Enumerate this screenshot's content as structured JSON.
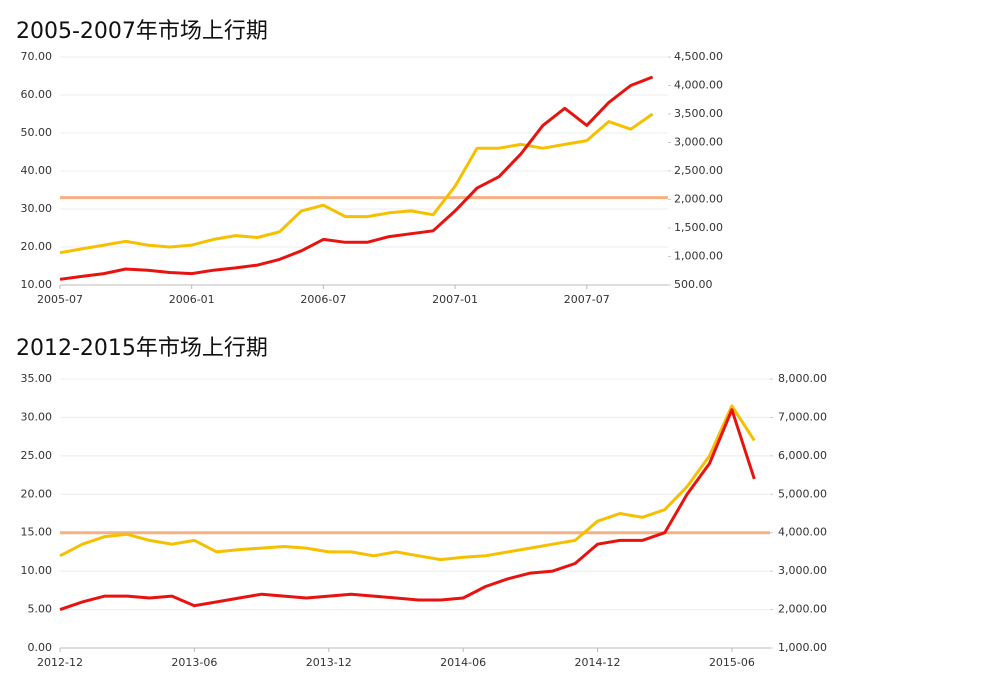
{
  "chart_data": [
    {
      "type": "line",
      "title": "2005-2007年市场上行期",
      "categories": [
        "2005-07",
        null,
        null,
        null,
        null,
        null,
        "2006-01",
        null,
        null,
        null,
        null,
        null,
        "2006-07",
        null,
        null,
        null,
        null,
        null,
        "2007-01",
        null,
        null,
        null,
        null,
        null,
        "2007-07",
        null,
        null,
        null
      ],
      "series": [
        {
          "color": "#f5c000",
          "axis": "y",
          "values": [
            18.5,
            19.5,
            20.5,
            21.5,
            20.5,
            20,
            20.5,
            22,
            23,
            22.5,
            24,
            29.5,
            31,
            28,
            28,
            29,
            29.5,
            28.5,
            36,
            46,
            46,
            47,
            46,
            47,
            48,
            53,
            51,
            55
          ]
        },
        {
          "color": "#e8130f",
          "axis": "y2",
          "values": [
            600,
            650,
            700,
            780,
            760,
            720,
            700,
            760,
            800,
            850,
            950,
            1100,
            1300,
            1250,
            1250,
            1350,
            1400,
            1450,
            1800,
            2200,
            2400,
            2800,
            3300,
            3600,
            3300,
            3700,
            4000,
            4150
          ]
        }
      ],
      "hlines": [
        {
          "value": 33,
          "color": "#f4b183",
          "axis": "y"
        }
      ],
      "ylim": [
        10,
        70
      ],
      "yticks": [
        {
          "value": 10,
          "label": "10.00"
        },
        {
          "value": 20,
          "label": "20.00"
        },
        {
          "value": 30,
          "label": "30.00"
        },
        {
          "value": 40,
          "label": "40.00"
        },
        {
          "value": 50,
          "label": "50.00"
        },
        {
          "value": 60,
          "label": "60.00"
        },
        {
          "value": 70,
          "label": "70.00"
        }
      ],
      "y2lim": [
        500,
        4500
      ],
      "y2ticks": [
        {
          "value": 500,
          "label": "500.00"
        },
        {
          "value": 1000,
          "label": "1,000.00"
        },
        {
          "value": 1500,
          "label": "1,500.00"
        },
        {
          "value": 2000,
          "label": "2,000.00"
        },
        {
          "value": 2500,
          "label": "2,500.00"
        },
        {
          "value": 3000,
          "label": "3,000.00"
        },
        {
          "value": 3500,
          "label": "3,500.00"
        },
        {
          "value": 4000,
          "label": "4,000.00"
        },
        {
          "value": 4500,
          "label": "4,500.00"
        }
      ],
      "grid": true
    },
    {
      "type": "line",
      "title": "2012-2015年市场上行期",
      "categories": [
        "2012-12",
        null,
        null,
        null,
        null,
        null,
        "2013-06",
        null,
        null,
        null,
        null,
        null,
        "2013-12",
        null,
        null,
        null,
        null,
        null,
        "2014-06",
        null,
        null,
        null,
        null,
        null,
        "2014-12",
        null,
        null,
        null,
        null,
        null,
        "2015-06",
        null
      ],
      "series": [
        {
          "color": "#f5c000",
          "axis": "y",
          "values": [
            12,
            13.5,
            14.5,
            14.8,
            14,
            13.5,
            14,
            12.5,
            12.8,
            13,
            13.2,
            13,
            12.5,
            12.5,
            12,
            12.5,
            12,
            11.5,
            11.8,
            12,
            12.5,
            13,
            13.5,
            14,
            16.5,
            17.5,
            17,
            18,
            21,
            25,
            31.5,
            27
          ]
        },
        {
          "color": "#e8130f",
          "axis": "y2",
          "values": [
            2000,
            2200,
            2350,
            2350,
            2300,
            2350,
            2100,
            2200,
            2300,
            2400,
            2350,
            2300,
            2350,
            2400,
            2350,
            2300,
            2250,
            2250,
            2300,
            2600,
            2800,
            2950,
            3000,
            3200,
            3700,
            3800,
            3800,
            4000,
            5000,
            5800,
            7200,
            5400
          ]
        }
      ],
      "hlines": [
        {
          "value": 15,
          "color": "#f4b183",
          "axis": "y"
        }
      ],
      "ylim": [
        0,
        35
      ],
      "yticks": [
        {
          "value": 0,
          "label": "0.00"
        },
        {
          "value": 5,
          "label": "5.00"
        },
        {
          "value": 10,
          "label": "10.00"
        },
        {
          "value": 15,
          "label": "15.00"
        },
        {
          "value": 20,
          "label": "20.00"
        },
        {
          "value": 25,
          "label": "25.00"
        },
        {
          "value": 30,
          "label": "30.00"
        },
        {
          "value": 35,
          "label": "35.00"
        }
      ],
      "y2lim": [
        1000,
        8000
      ],
      "y2ticks": [
        {
          "value": 1000,
          "label": "1,000.00"
        },
        {
          "value": 2000,
          "label": "2,000.00"
        },
        {
          "value": 3000,
          "label": "3,000.00"
        },
        {
          "value": 4000,
          "label": "4,000.00"
        },
        {
          "value": 5000,
          "label": "5,000.00"
        },
        {
          "value": 6000,
          "label": "6,000.00"
        },
        {
          "value": 7000,
          "label": "7,000.00"
        },
        {
          "value": 8000,
          "label": "8,000.00"
        }
      ],
      "grid": true
    }
  ]
}
